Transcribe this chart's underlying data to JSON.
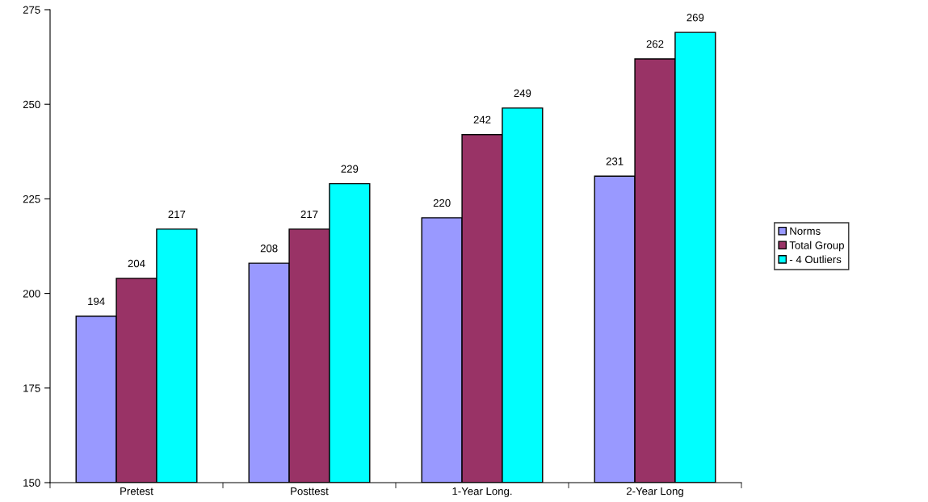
{
  "chart_data": {
    "type": "bar",
    "categories": [
      "Pretest",
      "Posttest",
      "1-Year Long.",
      "2-Year Long"
    ],
    "series": [
      {
        "name": "Norms",
        "color": "#9999ff",
        "values": [
          194,
          208,
          220,
          231
        ]
      },
      {
        "name": "Total Group",
        "color": "#993366",
        "values": [
          204,
          217,
          242,
          262
        ]
      },
      {
        "name": "- 4 Outliers",
        "color": "#00ffff",
        "values": [
          217,
          229,
          249,
          269
        ]
      }
    ],
    "ylim": [
      150,
      275
    ],
    "yticks": [
      150,
      175,
      200,
      225,
      250,
      275
    ],
    "data_labels": true,
    "grid": false,
    "legend": "right"
  }
}
